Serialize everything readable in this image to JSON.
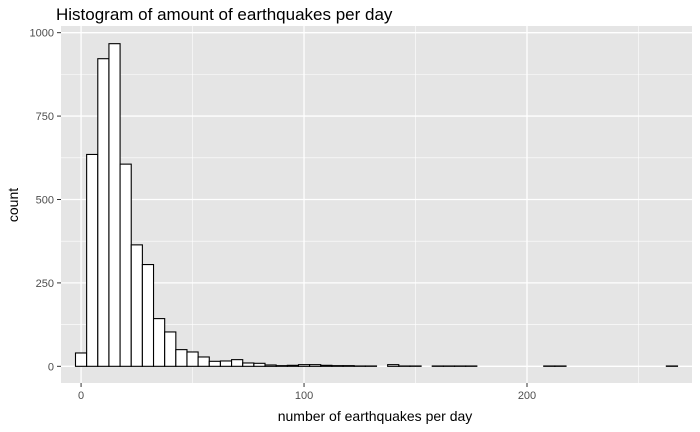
{
  "chart_data": {
    "type": "bar",
    "title": "Histogram of amount of earthquakes per day",
    "xlabel": "number of earthquakes per day",
    "ylabel": "count",
    "bin_width": 5,
    "bin_starts": [
      -2.5,
      2.5,
      7.5,
      12.5,
      17.5,
      22.5,
      27.5,
      32.5,
      37.5,
      42.5,
      47.5,
      52.5,
      57.5,
      62.5,
      67.5,
      72.5,
      77.5,
      82.5,
      87.5,
      92.5,
      97.5,
      102.5,
      107.5,
      112.5,
      117.5,
      122.5,
      127.5,
      132.5,
      137.5,
      142.5,
      147.5,
      152.5,
      157.5,
      162.5,
      167.5,
      172.5,
      177.5,
      182.5,
      187.5,
      192.5,
      197.5,
      202.5,
      207.5,
      212.5,
      217.5,
      222.5,
      227.5,
      232.5,
      237.5,
      242.5,
      247.5,
      252.5,
      257.5,
      262.5
    ],
    "values": [
      40,
      635,
      922,
      967,
      606,
      364,
      305,
      143,
      103,
      50,
      43,
      28,
      15,
      16,
      20,
      10,
      9,
      4,
      2,
      3,
      5,
      5,
      3,
      2,
      2,
      1,
      1,
      0,
      5,
      1,
      1,
      0,
      1,
      1,
      1,
      1,
      0,
      0,
      0,
      0,
      0,
      0,
      1,
      1,
      0,
      0,
      0,
      0,
      0,
      0,
      0,
      0,
      0,
      1
    ],
    "xlim": [
      -9,
      274
    ],
    "ylim": [
      -50,
      1020
    ],
    "x_ticks": [
      0,
      100,
      200
    ],
    "x_tick_labels": [
      "0",
      "100",
      "200"
    ],
    "y_ticks": [
      0,
      250,
      500,
      750,
      1000
    ],
    "y_tick_labels": [
      "0",
      "250",
      "500",
      "750",
      "1000"
    ],
    "grid": true,
    "bar_fill": "#ffffff",
    "bar_stroke": "#000000",
    "panel_background": "#e5e5e5",
    "grid_color": "#ffffff"
  }
}
